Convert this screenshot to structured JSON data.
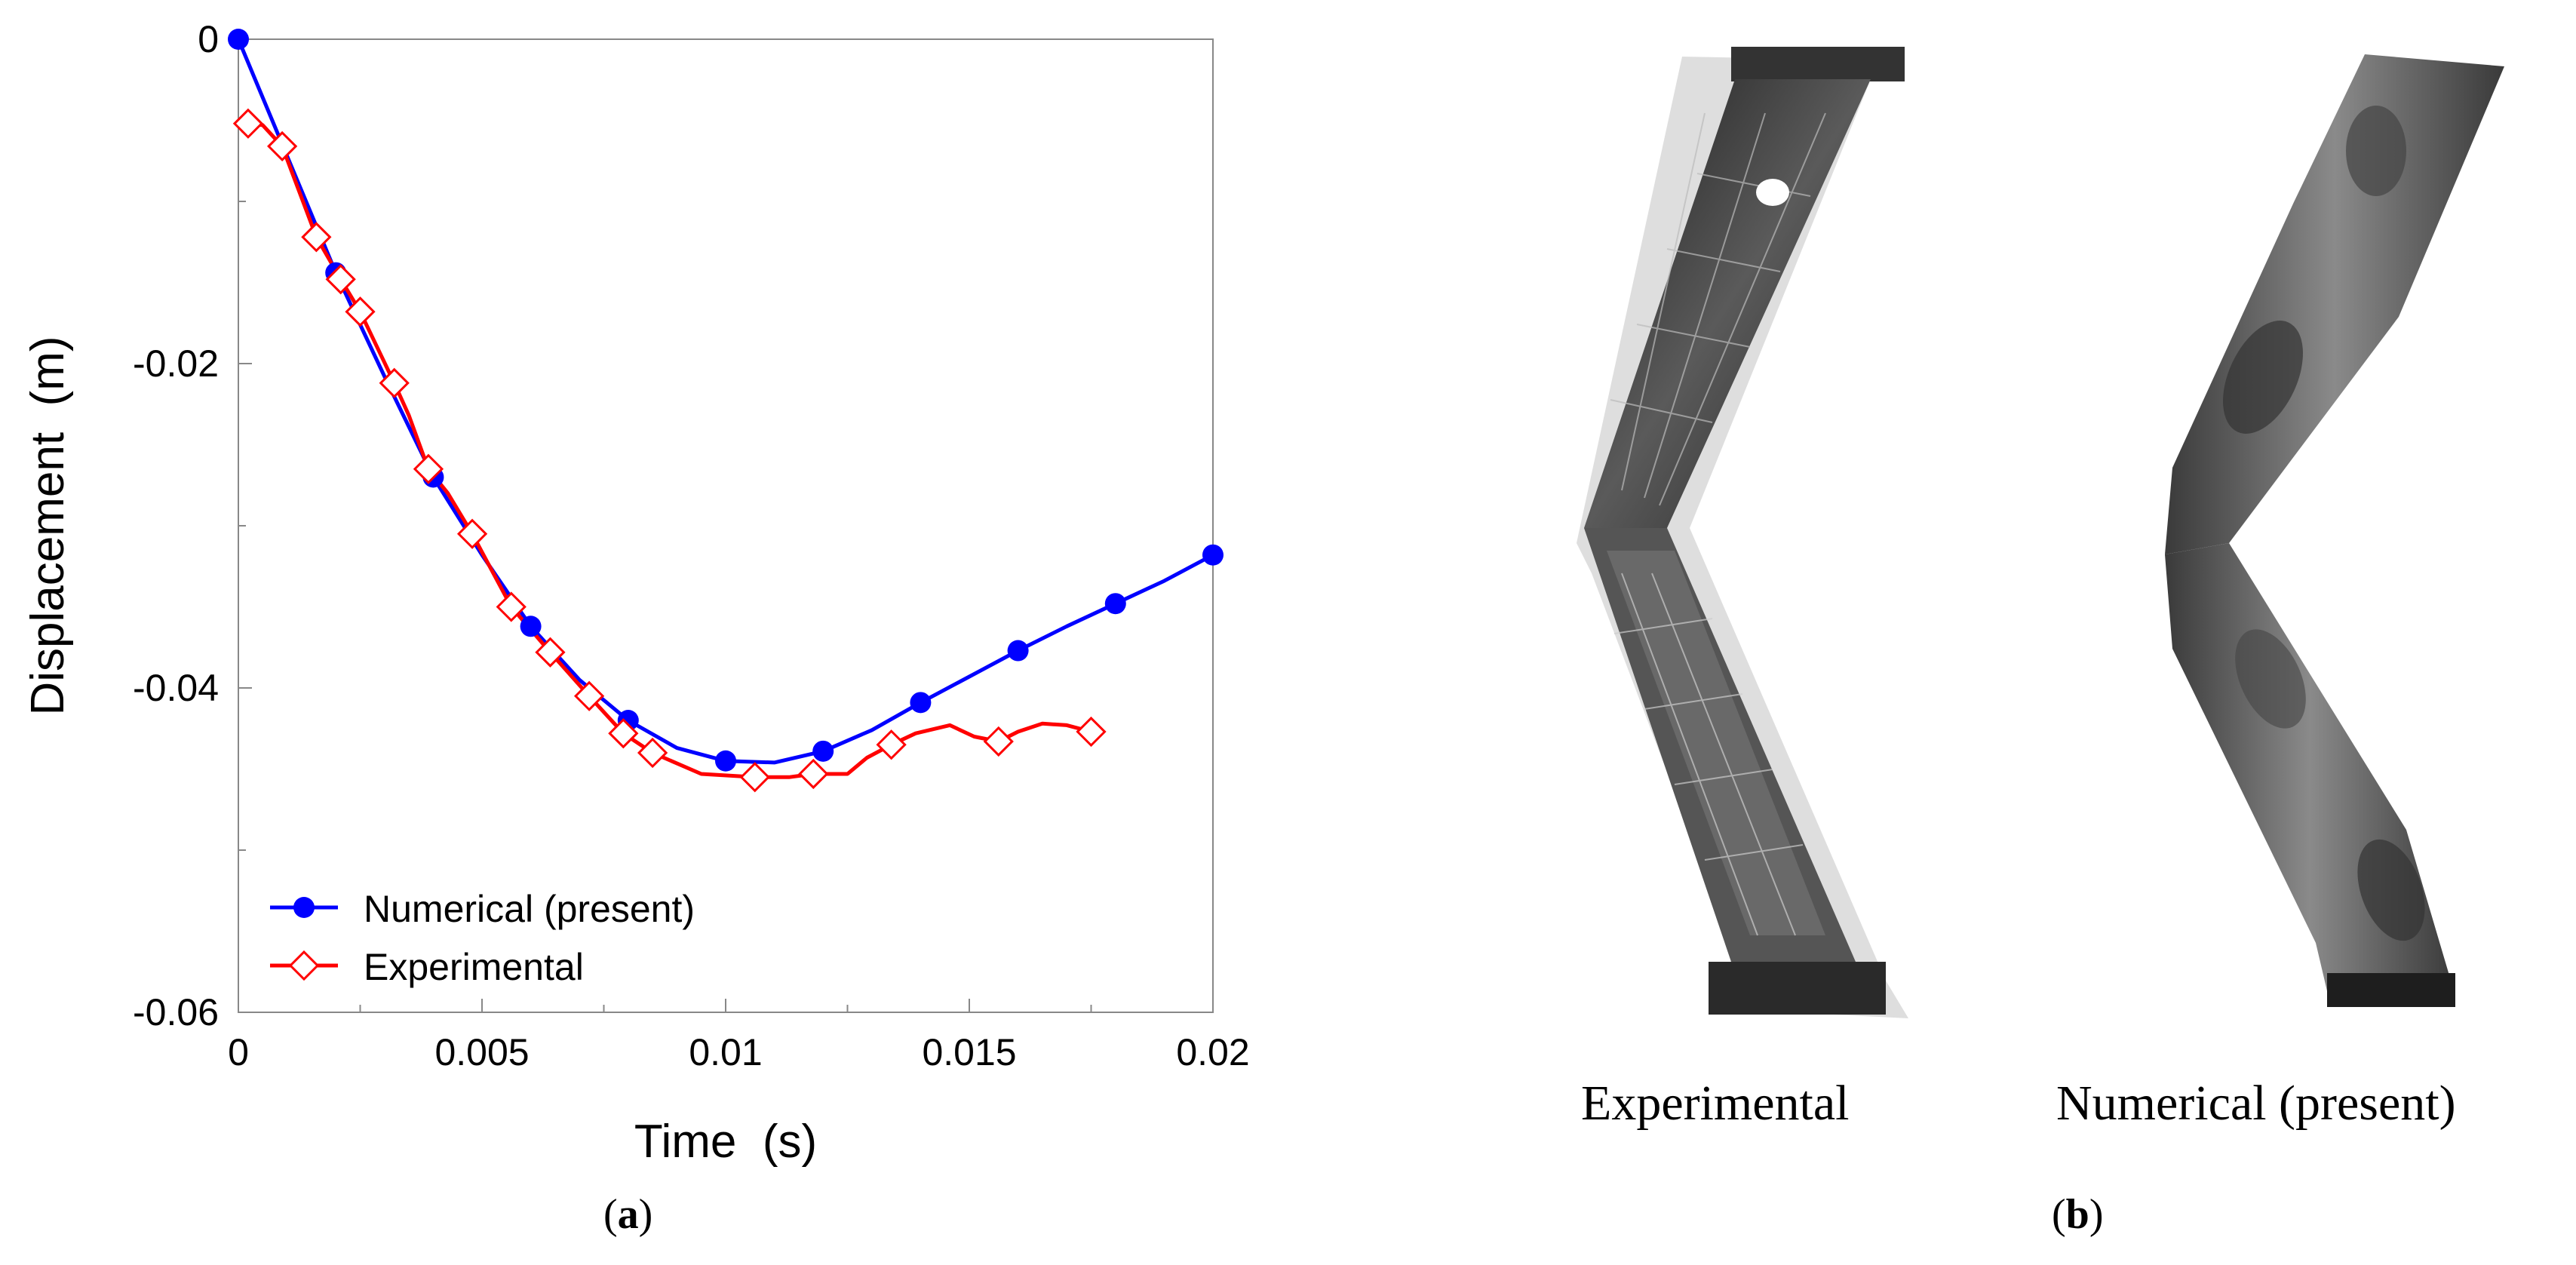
{
  "chart_data": {
    "type": "line",
    "xlabel": "Time  (s)",
    "ylabel": "Displacement  (m)",
    "xlim": [
      0,
      0.02
    ],
    "ylim": [
      -0.06,
      0
    ],
    "x_ticks": [
      "0",
      "0.005",
      "0.01",
      "0.015",
      "0.02"
    ],
    "y_ticks": [
      "0",
      "-0.02",
      "-0.04",
      "-0.06"
    ],
    "x_tick_values": [
      0,
      0.005,
      0.01,
      0.015,
      0.02
    ],
    "y_tick_values": [
      0,
      -0.02,
      -0.04,
      -0.06
    ],
    "grid": false,
    "legend_position": "bottom-left",
    "series": [
      {
        "name": "Numerical (present)",
        "color": "#0000ff",
        "marker": "filled-circle",
        "line_x": [
          0,
          0.001,
          0.002,
          0.003,
          0.004,
          0.005,
          0.006,
          0.007,
          0.008,
          0.009,
          0.01,
          0.011,
          0.012,
          0.013,
          0.014,
          0.015,
          0.016,
          0.017,
          0.018,
          0.019,
          0.02
        ],
        "line_y": [
          0,
          -0.0072,
          -0.0144,
          -0.0208,
          -0.027,
          -0.0318,
          -0.0362,
          -0.0395,
          -0.042,
          -0.0437,
          -0.0445,
          -0.0446,
          -0.0439,
          -0.0426,
          -0.0409,
          -0.0393,
          -0.0377,
          -0.0362,
          -0.0348,
          -0.0334,
          -0.0318
        ],
        "marker_x": [
          0,
          0.002,
          0.004,
          0.006,
          0.008,
          0.01,
          0.012,
          0.014,
          0.016,
          0.018,
          0.02
        ],
        "marker_y": [
          0,
          -0.0144,
          -0.027,
          -0.0362,
          -0.042,
          -0.0445,
          -0.0439,
          -0.0409,
          -0.0377,
          -0.0348,
          -0.0318
        ]
      },
      {
        "name": "Experimental",
        "color": "#ff0000",
        "marker": "open-diamond",
        "line_x": [
          0.0001,
          0.0002,
          0.0005,
          0.0009,
          0.0016,
          0.0021,
          0.0025,
          0.0032,
          0.0035,
          0.0039,
          0.0043,
          0.0048,
          0.0056,
          0.0064,
          0.0072,
          0.0079,
          0.0085,
          0.0095,
          0.0106,
          0.0113,
          0.0118,
          0.0125,
          0.0129,
          0.0134,
          0.0139,
          0.0146,
          0.0151,
          0.0156,
          0.016,
          0.0165,
          0.017,
          0.0175
        ],
        "line_y": [
          -0.0058,
          -0.0052,
          -0.0053,
          -0.0066,
          -0.0122,
          -0.0148,
          -0.0168,
          -0.0212,
          -0.0232,
          -0.0265,
          -0.028,
          -0.0305,
          -0.035,
          -0.0378,
          -0.0405,
          -0.0428,
          -0.044,
          -0.0453,
          -0.0455,
          -0.0455,
          -0.0453,
          -0.0453,
          -0.0443,
          -0.0435,
          -0.0428,
          -0.0423,
          -0.043,
          -0.0433,
          -0.0427,
          -0.0422,
          -0.0423,
          -0.0427
        ],
        "marker_x": [
          0.0002,
          0.0009,
          0.0016,
          0.0021,
          0.0025,
          0.0032,
          0.0039,
          0.0048,
          0.0056,
          0.0064,
          0.0072,
          0.0079,
          0.0085,
          0.0106,
          0.0118,
          0.0134,
          0.0156,
          0.0175
        ],
        "marker_y": [
          -0.0052,
          -0.0066,
          -0.0122,
          -0.0148,
          -0.0168,
          -0.0212,
          -0.0265,
          -0.0305,
          -0.035,
          -0.0378,
          -0.0405,
          -0.0428,
          -0.044,
          -0.0455,
          -0.0453,
          -0.0435,
          -0.0433,
          -0.0427
        ]
      }
    ]
  },
  "captions": {
    "panel_a": "(a)",
    "panel_a_letter": "a",
    "panel_b_letter": "b",
    "photo_left": "Experimental",
    "photo_right": "Numerical (present)"
  },
  "colors": {
    "numerical": "#0000ff",
    "experimental": "#ff0000",
    "specimen_dark": "#2e2e2e",
    "specimen_mid": "#7a7a7a"
  }
}
